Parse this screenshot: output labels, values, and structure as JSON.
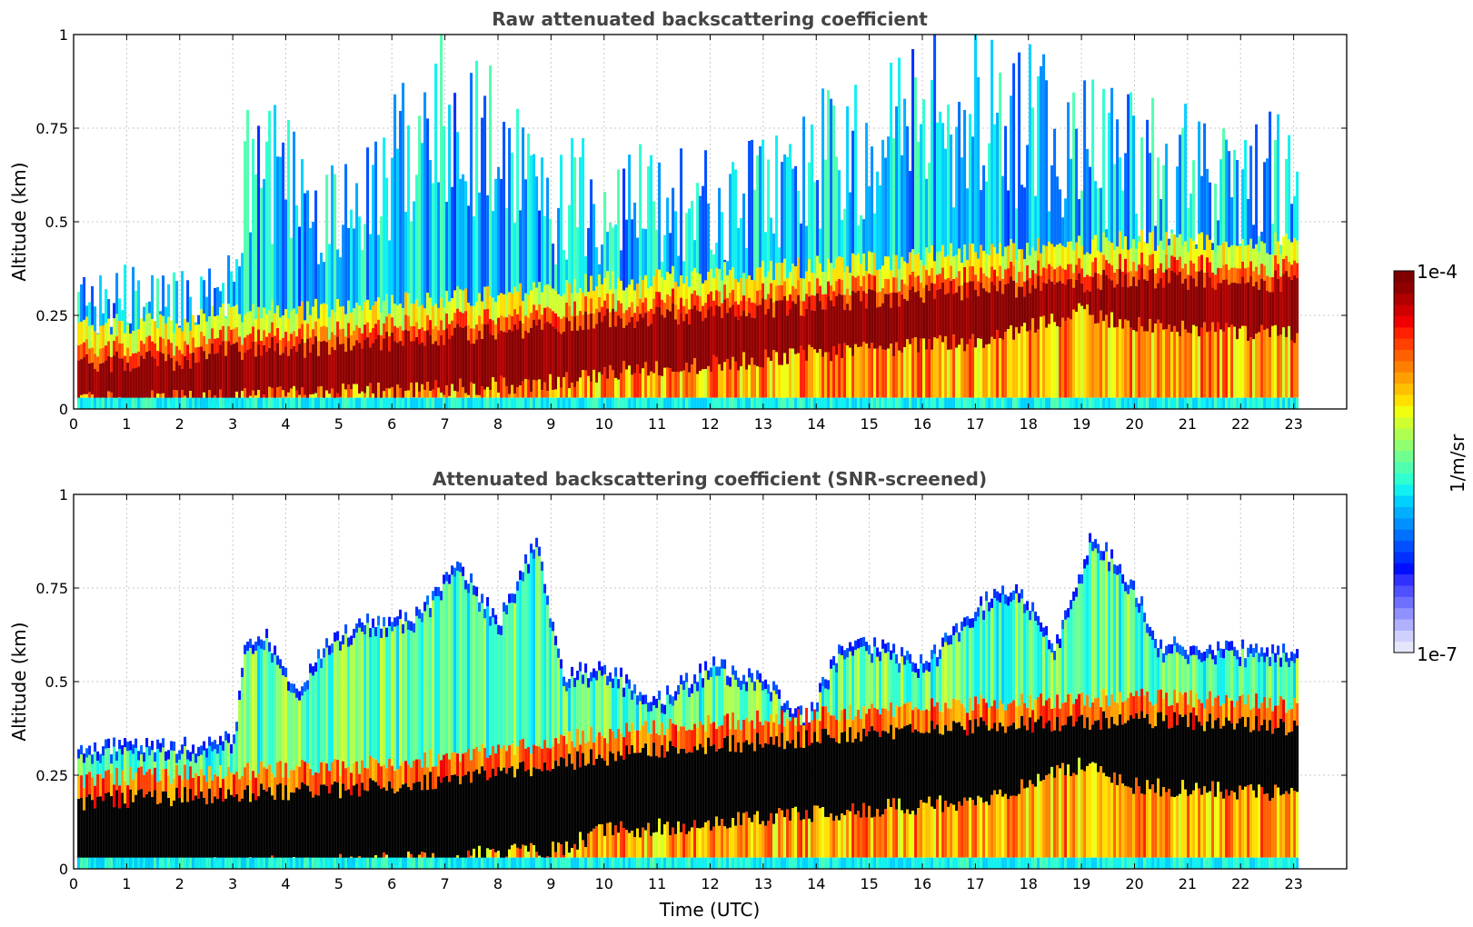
{
  "chart_data": [
    {
      "type": "heatmap",
      "title": "Raw attenuated backscattering coefficient",
      "xlabel": "",
      "ylabel": "Altitude (km)",
      "xlim": [
        0,
        24
      ],
      "ylim": [
        0,
        1
      ],
      "xticks": [
        "0",
        "1",
        "2",
        "3",
        "4",
        "5",
        "6",
        "7",
        "8",
        "9",
        "10",
        "11",
        "12",
        "13",
        "14",
        "15",
        "16",
        "17",
        "18",
        "19",
        "20",
        "21",
        "22",
        "23"
      ],
      "yticks": [
        "0",
        "0.25",
        "0.5",
        "0.75",
        "1"
      ],
      "data_x_range": [
        0.07,
        23.05
      ],
      "grid": true,
      "colormap": "jet",
      "layer_top_km": [
        [
          0,
          0.22
        ],
        [
          2,
          0.23
        ],
        [
          3,
          0.26
        ],
        [
          5,
          0.27
        ],
        [
          8,
          0.31
        ],
        [
          10,
          0.34
        ],
        [
          12,
          0.36
        ],
        [
          14,
          0.38
        ],
        [
          17,
          0.42
        ],
        [
          20,
          0.45
        ],
        [
          23,
          0.44
        ]
      ],
      "layer_core_bottom_km": [
        [
          0,
          0.02
        ],
        [
          3,
          0.03
        ],
        [
          6,
          0.05
        ],
        [
          9,
          0.07
        ],
        [
          10,
          0.1
        ],
        [
          12,
          0.12
        ],
        [
          14,
          0.15
        ],
        [
          17,
          0.18
        ],
        [
          19,
          0.26
        ],
        [
          20,
          0.22
        ],
        [
          23,
          0.2
        ]
      ],
      "noise_top_km": [
        [
          0,
          0.36
        ],
        [
          3,
          0.4
        ],
        [
          3.2,
          0.85
        ],
        [
          5,
          0.65
        ],
        [
          7,
          1.0
        ],
        [
          9,
          0.7
        ],
        [
          12,
          0.7
        ],
        [
          17,
          1.0
        ],
        [
          20,
          0.8
        ],
        [
          23,
          0.75
        ]
      ]
    },
    {
      "type": "heatmap",
      "title": "Attenuated backscattering coefficient (SNR-screened)",
      "xlabel": "Time (UTC)",
      "ylabel": "Altitude (km)",
      "xlim": [
        0,
        24
      ],
      "ylim": [
        0,
        1
      ],
      "xticks": [
        "0",
        "1",
        "2",
        "3",
        "4",
        "5",
        "6",
        "7",
        "8",
        "9",
        "10",
        "11",
        "12",
        "13",
        "14",
        "15",
        "16",
        "17",
        "18",
        "19",
        "20",
        "21",
        "22",
        "23"
      ],
      "yticks": [
        "0",
        "0.25",
        "0.5",
        "0.75",
        "1"
      ],
      "data_x_range": [
        0.07,
        23.05
      ],
      "grid": true,
      "colormap": "jet",
      "screened_top_km": [
        [
          0,
          0.33
        ],
        [
          2.2,
          0.33
        ],
        [
          3,
          0.35
        ],
        [
          3.2,
          0.6
        ],
        [
          3.6,
          0.63
        ],
        [
          4.2,
          0.46
        ],
        [
          4.8,
          0.62
        ],
        [
          5.5,
          0.66
        ],
        [
          6.5,
          0.68
        ],
        [
          7.2,
          0.82
        ],
        [
          8,
          0.66
        ],
        [
          8.7,
          0.88
        ],
        [
          9.2,
          0.52
        ],
        [
          10,
          0.54
        ],
        [
          11,
          0.45
        ],
        [
          12,
          0.55
        ],
        [
          13,
          0.5
        ],
        [
          13.8,
          0.4
        ],
        [
          14.4,
          0.58
        ],
        [
          15,
          0.6
        ],
        [
          16,
          0.55
        ],
        [
          17.2,
          0.72
        ],
        [
          17.8,
          0.75
        ],
        [
          18.5,
          0.6
        ],
        [
          19.2,
          0.9
        ],
        [
          20,
          0.75
        ],
        [
          20.4,
          0.6
        ],
        [
          23,
          0.58
        ]
      ],
      "saturated_top_km": [
        [
          0,
          0.18
        ],
        [
          3,
          0.2
        ],
        [
          6,
          0.22
        ],
        [
          9,
          0.28
        ],
        [
          10,
          0.3
        ],
        [
          12,
          0.33
        ],
        [
          14,
          0.35
        ],
        [
          17,
          0.38
        ],
        [
          20,
          0.4
        ],
        [
          23,
          0.38
        ]
      ],
      "saturated_bottom_km": [
        [
          0,
          0.0
        ],
        [
          6,
          0.02
        ],
        [
          9,
          0.05
        ],
        [
          10,
          0.1
        ],
        [
          12,
          0.12
        ],
        [
          14,
          0.15
        ],
        [
          17,
          0.18
        ],
        [
          19,
          0.28
        ],
        [
          20,
          0.22
        ],
        [
          23,
          0.2
        ]
      ]
    }
  ],
  "colorbar": {
    "label": "1/m/sr",
    "max_label": "1e-4",
    "min_label": "1e-7",
    "colors": [
      "#e6e6fa",
      "#d0d0ff",
      "#b0b0ff",
      "#9090ff",
      "#7070ff",
      "#5050ff",
      "#3030ff",
      "#0010ff",
      "#0030ff",
      "#0050ff",
      "#0070ff",
      "#0090ff",
      "#00b0ff",
      "#00d0ff",
      "#10f0f0",
      "#30ffd0",
      "#50ffb0",
      "#70ff90",
      "#90ff70",
      "#b0ff50",
      "#d0ff30",
      "#f0ff10",
      "#ffe000",
      "#ffc000",
      "#ffa000",
      "#ff8000",
      "#ff6000",
      "#ff4000",
      "#ff2000",
      "#f00000",
      "#d00000",
      "#b00000",
      "#900000",
      "#800000"
    ]
  }
}
